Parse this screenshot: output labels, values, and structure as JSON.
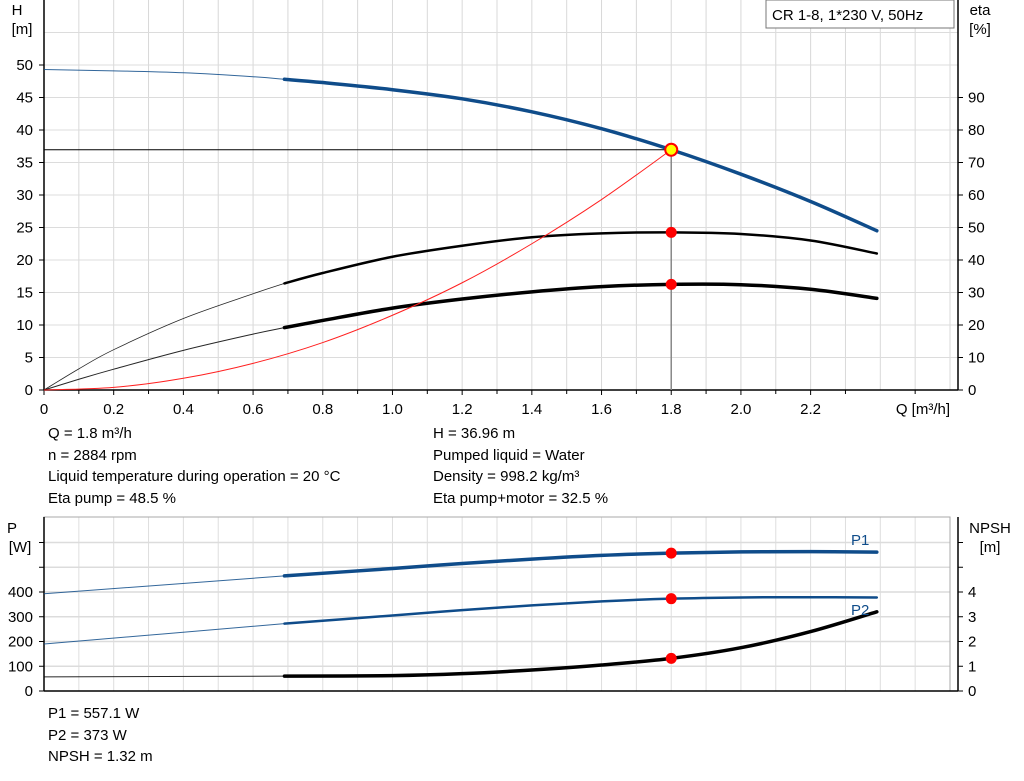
{
  "chart_data": [
    {
      "type": "line",
      "legend_box": "CR 1-8, 1*230 V, 50Hz",
      "xlabel": "Q [m³/h]",
      "ylabel_left": [
        "H",
        "[m]"
      ],
      "ylabel_right": [
        "eta",
        "[%]"
      ],
      "xlim": [
        0,
        2.6
      ],
      "ylim_left": [
        0,
        60
      ],
      "ylim_right": [
        0,
        120
      ],
      "x_ticks": [
        "0",
        "0.2",
        "0.4",
        "0.6",
        "0.8",
        "1.0",
        "1.2",
        "1.4",
        "1.6",
        "1.8",
        "2.0",
        "2.2"
      ],
      "y_ticks_left": [
        "0",
        "5",
        "10",
        "15",
        "20",
        "25",
        "30",
        "35",
        "40",
        "45",
        "50"
      ],
      "y_ticks_right": [
        "0",
        "10",
        "20",
        "30",
        "40",
        "50",
        "60",
        "70",
        "80",
        "90"
      ],
      "grid": true,
      "colors": {
        "head": "#0f4c8a",
        "system": "#ff2020",
        "eta": "#000000",
        "point": "#ff0000",
        "duty_point": "#ffff00"
      },
      "duty_point": {
        "Q": 1.8,
        "H": 36.96,
        "eta_pump": 48.5,
        "eta_total": 32.5
      },
      "thick_from_Q": 0.69,
      "series": [
        {
          "id": "head",
          "axis": "left",
          "x": [
            0,
            0.2,
            0.4,
            0.6,
            0.69,
            0.8,
            1.0,
            1.2,
            1.4,
            1.6,
            1.8,
            2.0,
            2.2,
            2.39
          ],
          "values": [
            49.3,
            49.1,
            48.8,
            48.2,
            47.8,
            47.3,
            46.2,
            44.8,
            42.8,
            40.2,
            36.96,
            33.2,
            29.0,
            24.5
          ]
        },
        {
          "id": "eta-pump",
          "axis": "right",
          "x": [
            0,
            0.1,
            0.2,
            0.4,
            0.6,
            0.69,
            0.8,
            1.0,
            1.2,
            1.4,
            1.6,
            1.8,
            2.0,
            2.2,
            2.39
          ],
          "values": [
            0,
            6.5,
            12.4,
            22,
            29.6,
            32.8,
            36,
            41,
            44.4,
            47,
            48.2,
            48.5,
            48,
            46,
            42
          ]
        },
        {
          "id": "eta-pump-motor",
          "axis": "right",
          "x": [
            0,
            0.1,
            0.2,
            0.4,
            0.6,
            0.69,
            0.8,
            1.0,
            1.2,
            1.4,
            1.6,
            1.8,
            2.0,
            2.2,
            2.39
          ],
          "values": [
            0,
            3.3,
            6.4,
            12.2,
            17.2,
            19.2,
            21.4,
            25.2,
            28,
            30.2,
            31.8,
            32.5,
            32.4,
            31,
            28.2
          ]
        },
        {
          "id": "system",
          "axis": "left",
          "x": [
            0,
            0.2,
            0.4,
            0.6,
            0.8,
            1.0,
            1.2,
            1.4,
            1.6,
            1.8
          ],
          "values": [
            0,
            0.4,
            1.8,
            4.1,
            7.3,
            11.5,
            16.5,
            22.5,
            29.3,
            36.96
          ]
        }
      ]
    },
    {
      "type": "line",
      "xlim": [
        0,
        2.6
      ],
      "ylabel_left": [
        "P",
        "[W]"
      ],
      "ylabel_right": [
        "NPSH",
        "[m]"
      ],
      "ylim_left": [
        0,
        700
      ],
      "ylim_right": [
        0,
        7
      ],
      "y_ticks_left": [
        "0",
        "100",
        "200",
        "300",
        "400"
      ],
      "y_ticks_right": [
        "0",
        "1",
        "2",
        "3",
        "4"
      ],
      "grid": true,
      "colors": {
        "p1": "#0f4c8a",
        "p2": "#0f4c8a",
        "npsh": "#000000",
        "point": "#ff0000"
      },
      "thick_from_Q": 0.69,
      "series": [
        {
          "id": "p1",
          "name": "P1",
          "axis": "left",
          "x": [
            0,
            0.69,
            1.0,
            1.2,
            1.4,
            1.6,
            1.8,
            2.0,
            2.2,
            2.39
          ],
          "values": [
            393,
            465,
            495,
            515,
            533,
            548,
            557.1,
            562,
            563,
            561
          ]
        },
        {
          "id": "p2",
          "name": "P2",
          "axis": "left",
          "x": [
            0,
            0.69,
            1.0,
            1.2,
            1.4,
            1.6,
            1.8,
            2.0,
            2.2,
            2.39
          ],
          "values": [
            190,
            272,
            305,
            327,
            346,
            362,
            373,
            378,
            379,
            378
          ]
        },
        {
          "id": "npsh",
          "axis": "right",
          "x": [
            0,
            0.69,
            1.0,
            1.2,
            1.4,
            1.6,
            1.8,
            2.0,
            2.2,
            2.39
          ],
          "values": [
            0.57,
            0.6,
            0.62,
            0.7,
            0.85,
            1.05,
            1.32,
            1.75,
            2.4,
            3.2
          ]
        }
      ],
      "duty_point": {
        "Q": 1.8,
        "P1": 557.1,
        "P2": 373,
        "NPSH": 1.32
      }
    }
  ],
  "info_left": [
    "Q = 1.8 m³/h",
    "n = 2884 rpm",
    "Liquid temperature during operation = 20 °C",
    "Eta pump = 48.5 %"
  ],
  "info_right": [
    "H = 36.96 m",
    "Pumped liquid = Water",
    "Density = 998.2 kg/m³",
    "Eta pump+motor = 32.5 %"
  ],
  "info_bottom": [
    "P1 = 557.1 W",
    "P2 = 373 W",
    "NPSH = 1.32 m"
  ]
}
